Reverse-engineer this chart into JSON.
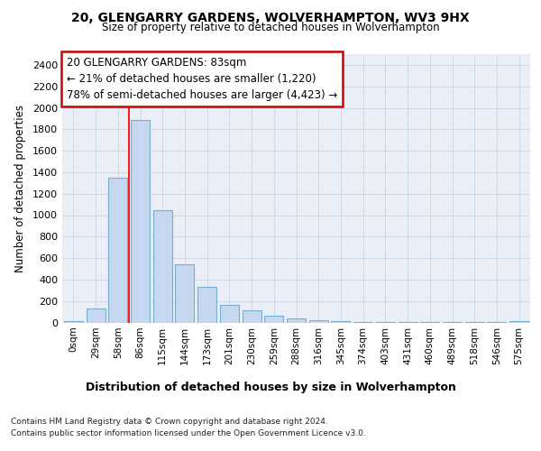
{
  "title_line1": "20, GLENGARRY GARDENS, WOLVERHAMPTON, WV3 9HX",
  "title_line2": "Size of property relative to detached houses in Wolverhampton",
  "xlabel": "Distribution of detached houses by size in Wolverhampton",
  "ylabel": "Number of detached properties",
  "categories": [
    "0sqm",
    "29sqm",
    "58sqm",
    "86sqm",
    "115sqm",
    "144sqm",
    "173sqm",
    "201sqm",
    "230sqm",
    "259sqm",
    "288sqm",
    "316sqm",
    "345sqm",
    "374sqm",
    "403sqm",
    "431sqm",
    "460sqm",
    "489sqm",
    "518sqm",
    "546sqm",
    "575sqm"
  ],
  "values": [
    15,
    130,
    1350,
    1890,
    1050,
    540,
    335,
    165,
    110,
    60,
    35,
    20,
    15,
    5,
    2,
    2,
    1,
    1,
    1,
    1,
    15
  ],
  "bar_color": "#c5d8ef",
  "bar_edgecolor": "#7aafd4",
  "redline_x": 2.5,
  "annotation_text_line1": "20 GLENGARRY GARDENS: 83sqm",
  "annotation_text_line2": "← 21% of detached houses are smaller (1,220)",
  "annotation_text_line3": "78% of semi-detached houses are larger (4,423) →",
  "annotation_box_facecolor": "#ffffff",
  "annotation_box_edgecolor": "#cc0000",
  "ylim_max": 2500,
  "yticks": [
    0,
    200,
    400,
    600,
    800,
    1000,
    1200,
    1400,
    1600,
    1800,
    2000,
    2200,
    2400
  ],
  "grid_color": "#d0d8e8",
  "plot_bg_color": "#eaeff7",
  "footer_line1": "Contains HM Land Registry data © Crown copyright and database right 2024.",
  "footer_line2": "Contains public sector information licensed under the Open Government Licence v3.0."
}
